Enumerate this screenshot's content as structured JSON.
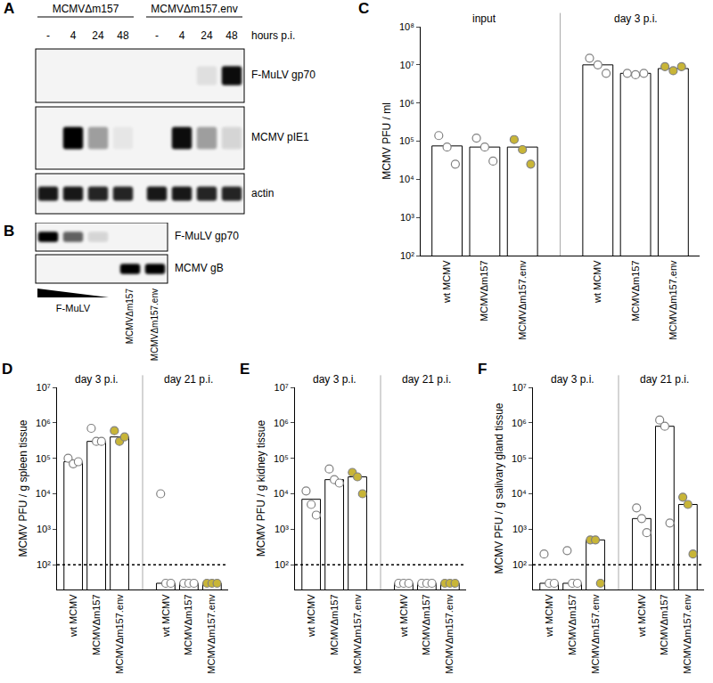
{
  "blots": [
    {
      "panel": "A",
      "lane_axis_label": "hours p.i.",
      "groups": [
        {
          "label": "MCMVΔm157",
          "lanes": [
            "-",
            "4",
            "24",
            "48"
          ]
        },
        {
          "label": "MCMVΔm157.env",
          "lanes": [
            "-",
            "4",
            "24",
            "48"
          ]
        }
      ],
      "rows": [
        {
          "label": "F-MuLV gp70",
          "bands": [
            0,
            0,
            0,
            0,
            0,
            0,
            0.08,
            0.95
          ]
        },
        {
          "label": "MCMV pIE1",
          "bands": [
            0,
            1,
            0.35,
            0.05,
            0,
            0.95,
            0.35,
            0.12
          ]
        },
        {
          "label": "actin",
          "bands": [
            0.9,
            0.9,
            0.85,
            0.85,
            0.9,
            0.9,
            0.85,
            0.85
          ]
        }
      ]
    },
    {
      "panel": "B",
      "groups": [
        {
          "label": "F-MuLV",
          "lanes": 3,
          "dilution": true
        },
        {
          "label": "MCMVΔm157",
          "lanes": 1
        },
        {
          "label": "MCMVΔm157.env",
          "lanes": 1
        }
      ],
      "rows": [
        {
          "label": "F-MuLV gp70",
          "bands": [
            1,
            0.6,
            0.12,
            0,
            0
          ]
        },
        {
          "label": "MCMV gB",
          "bands": [
            0,
            0,
            0,
            1,
            1
          ]
        }
      ]
    }
  ],
  "chart_data": [
    {
      "panel": "C",
      "type": "bar",
      "log": "y",
      "grid": false,
      "y_label": "MCMV PFU / ml",
      "categories": [
        "wt MCMV",
        "MCMVΔm157",
        "MCMVΔm157.env"
      ],
      "color": "#ffffff",
      "point_colors": [
        "#ffffff",
        "#ffffff",
        "#c8b537"
      ],
      "ylim": [
        100,
        100000000
      ],
      "yticks": [
        {
          "value": 100,
          "label": "10²"
        },
        {
          "value": 1000,
          "label": "10³"
        },
        {
          "value": 10000,
          "label": "10⁴"
        },
        {
          "value": 100000,
          "label": "10⁵"
        },
        {
          "value": 1000000,
          "label": "10⁶"
        },
        {
          "value": 10000000,
          "label": "10⁷"
        },
        {
          "value": 100000000,
          "label": "10⁸"
        }
      ],
      "groups": [
        {
          "name": "input",
          "values": [
            75000,
            70000,
            70000
          ],
          "points": [
            [
              140000,
              70000,
              25000
            ],
            [
              120000,
              70000,
              30000
            ],
            [
              110000,
              60000,
              25000
            ]
          ]
        },
        {
          "name": "day 3 p.i.",
          "values": [
            10000000,
            6000000,
            8000000
          ],
          "points": [
            [
              15000000,
              10000000,
              6000000
            ],
            [
              6000000,
              5500000,
              6000000
            ],
            [
              9000000,
              7000000,
              9000000
            ]
          ]
        }
      ]
    },
    {
      "panel": "D",
      "type": "bar",
      "log": "y",
      "grid": false,
      "y_label": "MCMV PFU / g spleen tissue",
      "categories": [
        "wt MCMV",
        "MCMVΔm157",
        "MCMVΔm157.env"
      ],
      "color": "#ffffff",
      "point_colors": [
        "#ffffff",
        "#ffffff",
        "#c8b537"
      ],
      "ylim": [
        20,
        10000000
      ],
      "detection_limit": 100,
      "yticks": [
        {
          "value": 100,
          "label": "10²"
        },
        {
          "value": 1000,
          "label": "10³"
        },
        {
          "value": 10000,
          "label": "10⁴"
        },
        {
          "value": 100000,
          "label": "10⁵"
        },
        {
          "value": 1000000,
          "label": "10⁶"
        },
        {
          "value": 10000000,
          "label": "10⁷"
        }
      ],
      "groups": [
        {
          "name": "day 3 p.i.",
          "values": [
            80000,
            300000,
            400000
          ],
          "points": [
            [
              100000,
              70000,
              80000
            ],
            [
              700000,
              300000,
              300000
            ],
            [
              600000,
              300000,
              400000
            ]
          ]
        },
        {
          "name": "day 21 p.i.",
          "values": [
            30,
            30,
            30
          ],
          "points": [
            [
              10000,
              30,
              30
            ],
            [
              30,
              30,
              30
            ],
            [
              30,
              30,
              30
            ]
          ]
        }
      ]
    },
    {
      "panel": "E",
      "type": "bar",
      "log": "y",
      "grid": false,
      "y_label": "MCMV PFU / g kidney tissue",
      "categories": [
        "wt MCMV",
        "MCMVΔm157",
        "MCMVΔm157.env"
      ],
      "color": "#ffffff",
      "point_colors": [
        "#ffffff",
        "#ffffff",
        "#c8b537"
      ],
      "ylim": [
        20,
        10000000
      ],
      "detection_limit": 100,
      "yticks": [
        {
          "value": 100,
          "label": "10²"
        },
        {
          "value": 1000,
          "label": "10³"
        },
        {
          "value": 10000,
          "label": "10⁴"
        },
        {
          "value": 100000,
          "label": "10⁵"
        },
        {
          "value": 1000000,
          "label": "10⁶"
        },
        {
          "value": 10000000,
          "label": "10⁷"
        }
      ],
      "groups": [
        {
          "name": "day 3 p.i.",
          "values": [
            7000,
            25000,
            30000
          ],
          "points": [
            [
              12000,
              5000,
              2500
            ],
            [
              50000,
              25000,
              20000
            ],
            [
              40000,
              30000,
              10000
            ]
          ]
        },
        {
          "name": "day 21 p.i.",
          "values": [
            30,
            30,
            30
          ],
          "points": [
            [
              30,
              30,
              30
            ],
            [
              30,
              30,
              30
            ],
            [
              30,
              30,
              30
            ]
          ]
        }
      ]
    },
    {
      "panel": "F",
      "type": "bar",
      "log": "y",
      "grid": false,
      "y_label": "MCMV PFU / g salivary gland tissue",
      "categories": [
        "wt MCMV",
        "MCMVΔm157",
        "MCMVΔm157.env"
      ],
      "color": "#ffffff",
      "point_colors": [
        "#ffffff",
        "#ffffff",
        "#c8b537"
      ],
      "ylim": [
        20,
        10000000
      ],
      "detection_limit": 100,
      "yticks": [
        {
          "value": 100,
          "label": "10²"
        },
        {
          "value": 1000,
          "label": "10³"
        },
        {
          "value": 10000,
          "label": "10⁴"
        },
        {
          "value": 100000,
          "label": "10⁵"
        },
        {
          "value": 1000000,
          "label": "10⁶"
        },
        {
          "value": 10000000,
          "label": "10⁷"
        }
      ],
      "groups": [
        {
          "name": "day 3 p.i.",
          "values": [
            30,
            30,
            500
          ],
          "points": [
            [
              200,
              30,
              30
            ],
            [
              250,
              30,
              30
            ],
            [
              500,
              500,
              30
            ]
          ]
        },
        {
          "name": "day 21 p.i.",
          "values": [
            2000,
            800000,
            5000
          ],
          "points": [
            [
              4000,
              2000,
              800
            ],
            [
              1200000,
              800000,
              1500
            ],
            [
              8000,
              5000,
              200
            ]
          ]
        }
      ]
    }
  ]
}
